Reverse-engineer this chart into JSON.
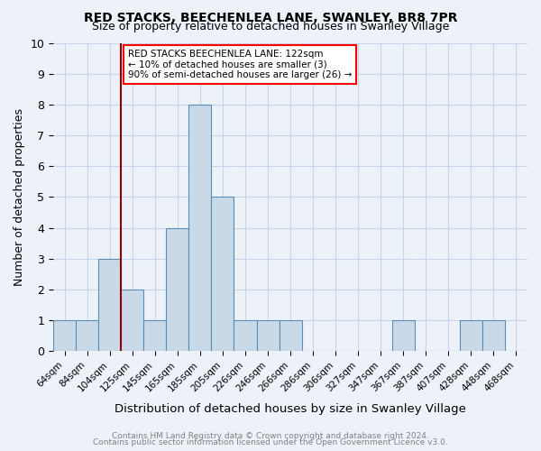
{
  "title1": "RED STACKS, BEECHENLEA LANE, SWANLEY, BR8 7PR",
  "title2": "Size of property relative to detached houses in Swanley Village",
  "xlabel": "Distribution of detached houses by size in Swanley Village",
  "ylabel": "Number of detached properties",
  "bins": [
    "64sqm",
    "84sqm",
    "104sqm",
    "125sqm",
    "145sqm",
    "165sqm",
    "185sqm",
    "205sqm",
    "226sqm",
    "246sqm",
    "266sqm",
    "286sqm",
    "306sqm",
    "327sqm",
    "347sqm",
    "367sqm",
    "387sqm",
    "407sqm",
    "428sqm",
    "448sqm",
    "468sqm"
  ],
  "counts": [
    1,
    1,
    3,
    2,
    1,
    4,
    8,
    5,
    1,
    1,
    1,
    0,
    0,
    0,
    0,
    1,
    0,
    0,
    1,
    1,
    0
  ],
  "bar_color": "#c9d9e8",
  "bar_edge_color": "#5a8db5",
  "property_line_label": "RED STACKS BEECHENLEA LANE: 122sqm",
  "annotation_line2": "← 10% of detached houses are smaller (3)",
  "annotation_line3": "90% of semi-detached houses are larger (26) →",
  "annotation_box_color": "white",
  "annotation_box_edge_color": "red",
  "red_line_color": "#8b0000",
  "red_line_x": 2.5,
  "ylim": [
    0,
    10
  ],
  "yticks": [
    0,
    1,
    2,
    3,
    4,
    5,
    6,
    7,
    8,
    9,
    10
  ],
  "footer1": "Contains HM Land Registry data © Crown copyright and database right 2024.",
  "footer2": "Contains public sector information licensed under the Open Government Licence v3.0.",
  "background_color": "#edf2f9",
  "grid_color": "#c8d4e8"
}
